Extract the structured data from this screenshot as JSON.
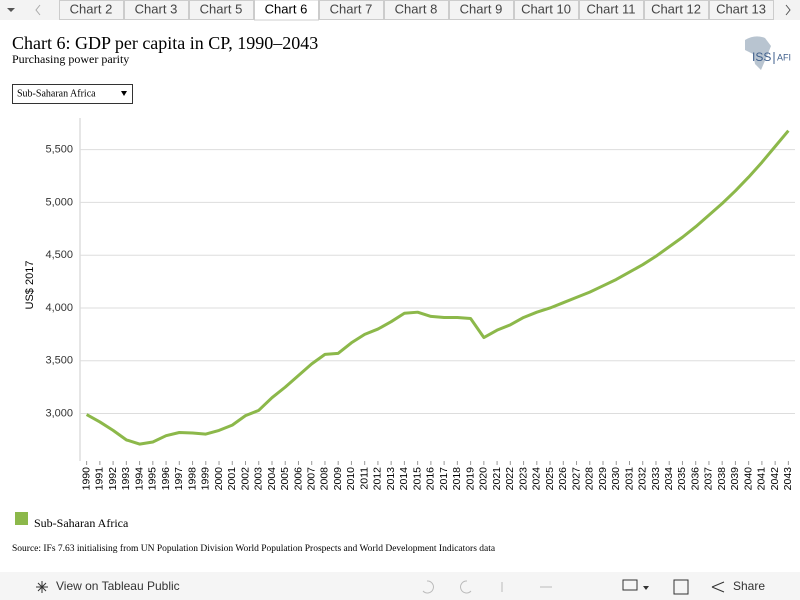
{
  "tabs": [
    "Chart 2",
    "Chart 3",
    "Chart 5",
    "Chart 6",
    "Chart 7",
    "Chart 8",
    "Chart 9",
    "Chart 10",
    "Chart 11",
    "Chart 12",
    "Chart 13"
  ],
  "active_tab": "Chart 6",
  "logo": {
    "left": "ISS",
    "right": "AFI"
  },
  "dropdown": "Sub-Saharan Africa",
  "source": "Source: IFs 7.63 initialising from UN Population Division World Population Prospects and World Development Indicators data",
  "toolbar": {
    "view": "View on Tableau Public",
    "share": "Share"
  },
  "chart_data": {
    "type": "line",
    "title": "Chart 6: GDP per capita in CP, 1990–2043",
    "subtitle": "Purchasing power parity",
    "y_label": "US$ 2017",
    "categories": [
      "1990",
      "1991",
      "1992",
      "1993",
      "1994",
      "1995",
      "1996",
      "1997",
      "1998",
      "1999",
      "2000",
      "2001",
      "2002",
      "2003",
      "2004",
      "2005",
      "2006",
      "2007",
      "2008",
      "2009",
      "2010",
      "2011",
      "2012",
      "2013",
      "2014",
      "2015",
      "2016",
      "2017",
      "2018",
      "2019",
      "2020",
      "2021",
      "2022",
      "2023",
      "2024",
      "2025",
      "2026",
      "2027",
      "2028",
      "2029",
      "2030",
      "2031",
      "2032",
      "2033",
      "2034",
      "2035",
      "2036",
      "2037",
      "2038",
      "2039",
      "2040",
      "2041",
      "2042",
      "2043"
    ],
    "series": [
      {
        "name": "Sub-Saharan Africa",
        "color": "#8cb84a",
        "values": [
          2990,
          2920,
          2840,
          2750,
          2710,
          2730,
          2790,
          2820,
          2815,
          2805,
          2840,
          2890,
          2980,
          3030,
          3150,
          3250,
          3360,
          3470,
          3560,
          3570,
          3670,
          3750,
          3800,
          3870,
          3950,
          3960,
          3920,
          3910,
          3910,
          3900,
          3720,
          3790,
          3840,
          3910,
          3960,
          4000,
          4050,
          4100,
          4150,
          4210,
          4270,
          4340,
          4410,
          4490,
          4580,
          4670,
          4770,
          4880,
          4990,
          5110,
          5240,
          5380,
          5530,
          5680
        ]
      }
    ],
    "ylim": [
      2550,
      5800
    ],
    "yticks": [
      {
        "value": 3000,
        "label": "3,000"
      },
      {
        "value": 3500,
        "label": "3,500"
      },
      {
        "value": 4000,
        "label": "4,000"
      },
      {
        "value": 4500,
        "label": "4,500"
      },
      {
        "value": 5000,
        "label": "5,000"
      },
      {
        "value": 5500,
        "label": "5,500"
      }
    ],
    "grid": true
  }
}
